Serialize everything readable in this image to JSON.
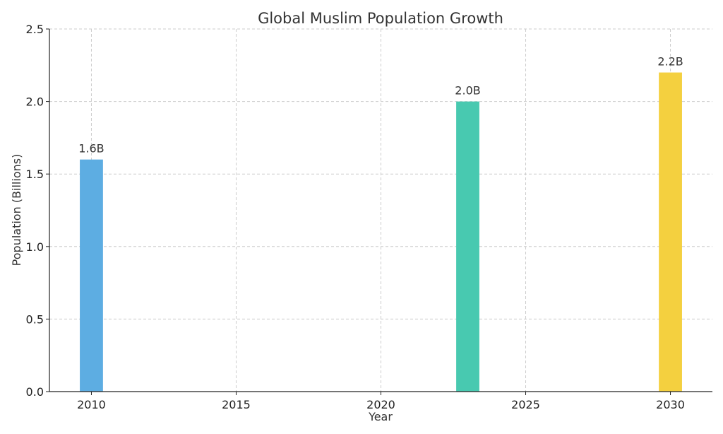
{
  "chart_data": {
    "type": "bar",
    "title": "Global Muslim Population Growth",
    "xlabel": "Year",
    "ylabel": "Population (Billions)",
    "xlim": [
      2008.55,
      2031.45
    ],
    "ylim": [
      0,
      2.5
    ],
    "xticks": [
      "2010",
      "2015",
      "2020",
      "2025",
      "2030"
    ],
    "yticks": [
      "0.0",
      "0.5",
      "1.0",
      "1.5",
      "2.0",
      "2.5"
    ],
    "grid": true,
    "bars": [
      {
        "x": 2010,
        "value": 1.6,
        "label": "1.6B",
        "color": "#5DADE2"
      },
      {
        "x": 2023,
        "value": 2.0,
        "label": "2.0B",
        "color": "#48C9B0"
      },
      {
        "x": 2030,
        "value": 2.2,
        "label": "2.2B",
        "color": "#F4D03F"
      }
    ]
  }
}
